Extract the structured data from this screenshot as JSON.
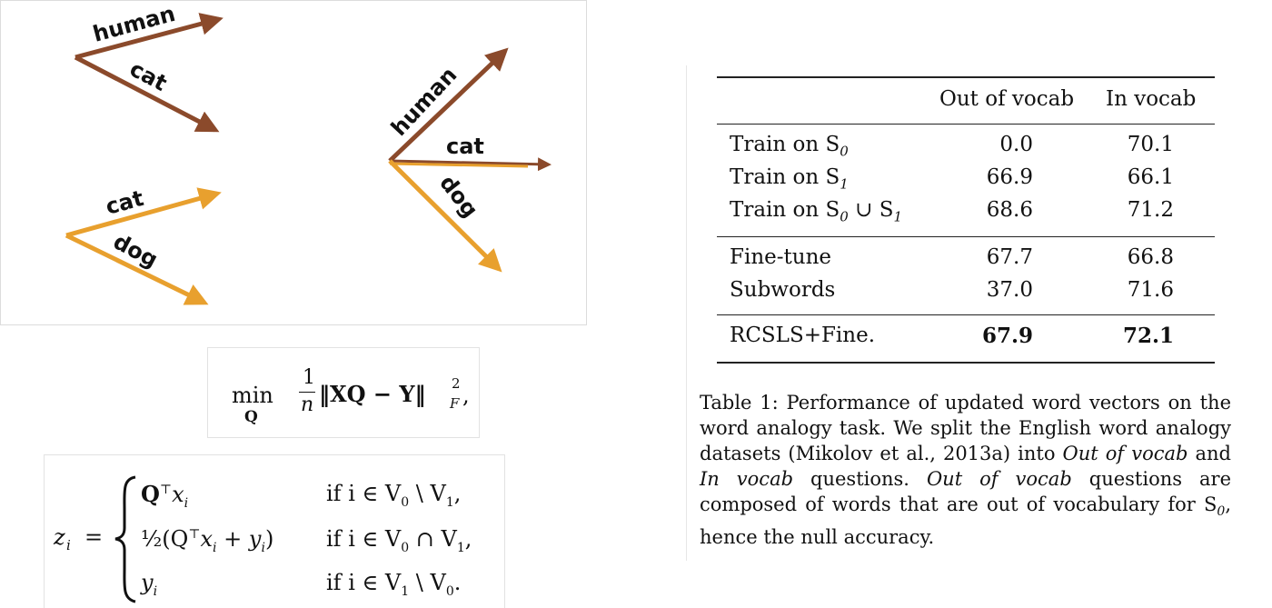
{
  "vectors": {
    "group1": {
      "labels": [
        "human",
        "cat"
      ],
      "color": "#8b4a2b"
    },
    "group2": {
      "labels": [
        "cat",
        "dog"
      ],
      "color": "#e8a02e"
    },
    "group3": {
      "labels": [
        "human",
        "cat",
        "dog"
      ],
      "colors": [
        "#8b4a2b",
        "#e8a02e"
      ]
    }
  },
  "formula1": {
    "min": "min",
    "sub": "Q",
    "num": "1",
    "den": "n",
    "body": "‖XQ − Y‖",
    "sup": "2",
    "supsub": "F",
    "tail": ","
  },
  "formula2": {
    "lhs_var": "z",
    "lhs_sub": "i",
    "eq": "=",
    "rows": [
      {
        "expr": "Q",
        "expr_rest": "x",
        "sub": "i",
        "cond": "if i ∈ V",
        "c1": "0",
        "c2": "\\ V",
        "c3": "1",
        "end": ","
      },
      {
        "expr": "½(Q",
        "expr_rest": "x",
        "sub": "i",
        "cond": "if i ∈ V",
        "c1": "0",
        "c2": "∩ V",
        "c3": "1",
        "end": ","
      },
      {
        "expr": "y",
        "expr_rest": "",
        "sub": "i",
        "cond": "if i ∈ V",
        "c1": "1",
        "c2": "\\ V",
        "c3": "0",
        "end": "."
      }
    ]
  },
  "table": {
    "headers": [
      "",
      "Out of vocab",
      "In vocab"
    ],
    "rows": [
      {
        "label": "Train on S",
        "sub": "0",
        "rest": "",
        "oov": "0.0",
        "iv": "70.1"
      },
      {
        "label": "Train on S",
        "sub": "1",
        "rest": "",
        "oov": "66.9",
        "iv": "66.1"
      },
      {
        "label": "Train on S",
        "sub": "0",
        "rest": " ∪ S",
        "sub2": "1",
        "oov": "68.6",
        "iv": "71.2"
      },
      {
        "label": "Fine-tune",
        "oov": "67.7",
        "iv": "66.8"
      },
      {
        "label": "Subwords",
        "oov": "37.0",
        "iv": "71.6"
      },
      {
        "label": "RCSLS+Fine.",
        "oov": "67.9",
        "iv": "72.1"
      }
    ],
    "caption": {
      "p1": "Table 1: Performance of updated word vectors on the word analogy task. We split the English word analogy datasets (Mikolov et al., 2013a) into ",
      "e1": "Out of vocab",
      "p2": " and ",
      "e2": "In vocab",
      "p3": " questions. ",
      "e3": "Out of vocab",
      "p4": " questions are composed of words that are out of vocabulary for S",
      "s1": "0",
      "p5": ", hence the null accuracy."
    }
  }
}
